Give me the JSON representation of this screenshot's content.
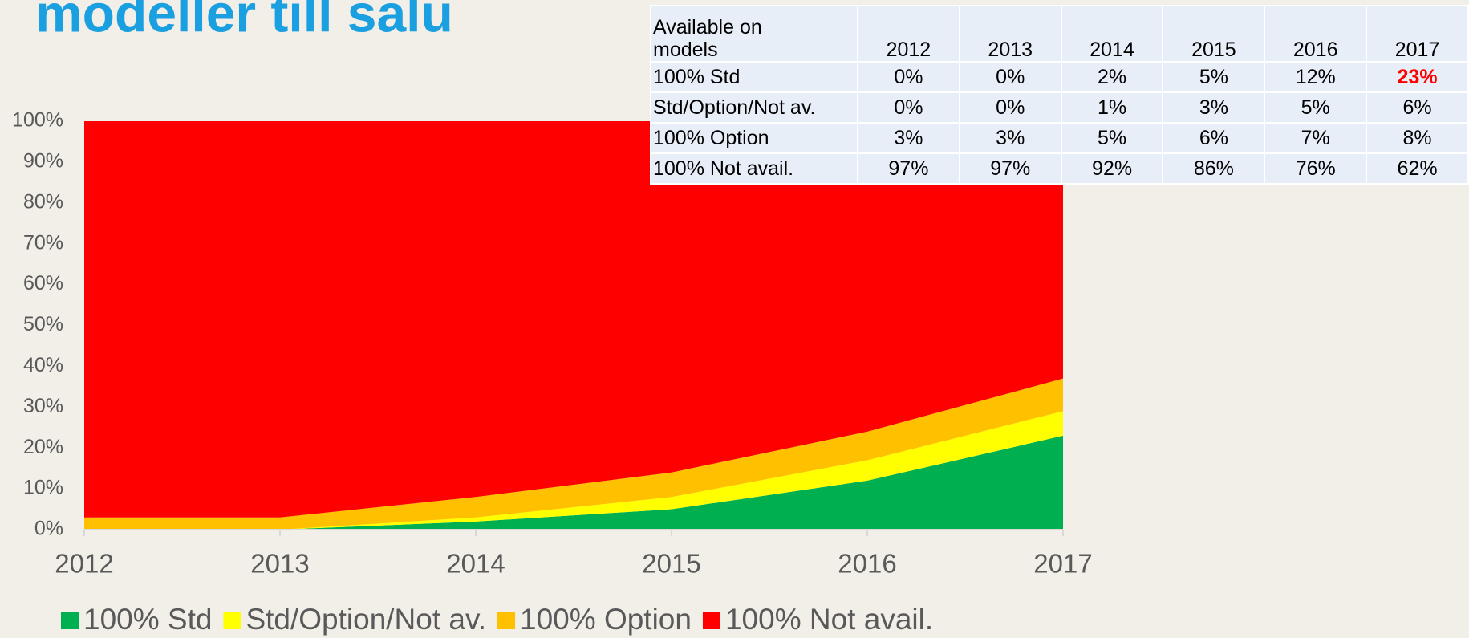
{
  "chart_data": {
    "type": "stacked_area",
    "title": "modeller till salu",
    "categories": [
      "2012",
      "2013",
      "2014",
      "2015",
      "2016",
      "2017"
    ],
    "series": [
      {
        "name": "100% Std",
        "color": "#00b050",
        "values": [
          0,
          0,
          2,
          5,
          12,
          23
        ]
      },
      {
        "name": "Std/Option/Not av.",
        "color": "#ffff00",
        "values": [
          0,
          0,
          1,
          3,
          5,
          6
        ]
      },
      {
        "name": "100% Option",
        "color": "#ffc000",
        "values": [
          3,
          3,
          5,
          6,
          7,
          8
        ]
      },
      {
        "name": "100% Not avail.",
        "color": "#ff0000",
        "values": [
          97,
          97,
          92,
          86,
          76,
          62
        ]
      }
    ],
    "ylim": [
      0,
      100
    ],
    "yticks": [
      {
        "value": 0,
        "label": "0%"
      },
      {
        "value": 10,
        "label": "10%"
      },
      {
        "value": 20,
        "label": "20%"
      },
      {
        "value": 30,
        "label": "30%"
      },
      {
        "value": 40,
        "label": "40%"
      },
      {
        "value": 50,
        "label": "50%"
      },
      {
        "value": 60,
        "label": "60%"
      },
      {
        "value": 70,
        "label": "70%"
      },
      {
        "value": 80,
        "label": "80%"
      },
      {
        "value": 90,
        "label": "90%"
      },
      {
        "value": 100,
        "label": "100%"
      }
    ],
    "legend": "bottom"
  },
  "table": {
    "rows": [
      [
        "Available on\nmodels",
        "2012",
        "2013",
        "2014",
        "2015",
        "2016",
        "2017"
      ],
      [
        "100% Std",
        "0%",
        "0%",
        "2%",
        "5%",
        "12%",
        "23%"
      ],
      [
        "Std/Option/Not av.",
        "0%",
        "0%",
        "1%",
        "3%",
        "5%",
        "6%"
      ],
      [
        "100% Option",
        "3%",
        "3%",
        "5%",
        "6%",
        "7%",
        "8%"
      ],
      [
        "100% Not avail.",
        "97%",
        "97%",
        "92%",
        "86%",
        "76%",
        "62%"
      ]
    ]
  }
}
